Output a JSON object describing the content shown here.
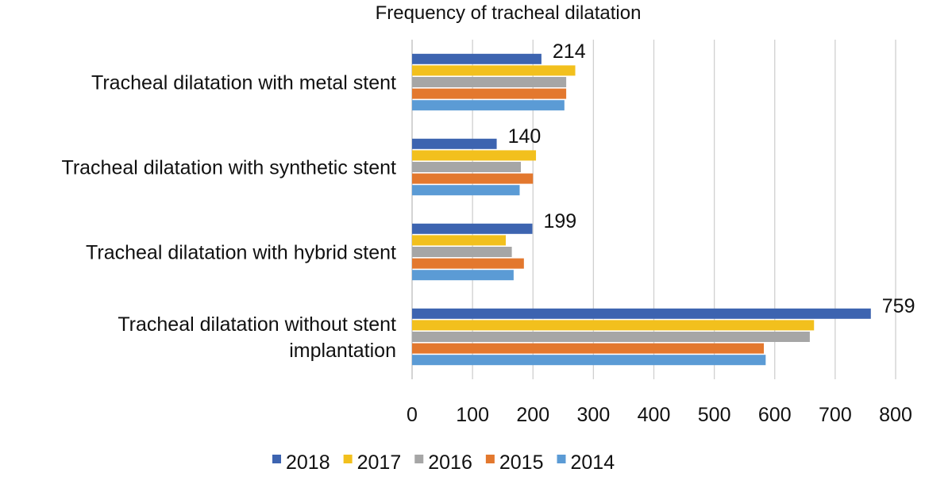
{
  "chart_data": {
    "type": "bar",
    "orientation": "horizontal",
    "title": "Frequency of tracheal dilatation",
    "xlabel": "",
    "ylabel": "",
    "xlim": [
      0,
      800
    ],
    "x_ticks": [
      0,
      100,
      200,
      300,
      400,
      500,
      600,
      700,
      800
    ],
    "grid": true,
    "legend_position": "bottom",
    "categories": [
      "Tracheal dilatation with metal stent",
      "Tracheal dilatation with synthetic stent",
      "Tracheal dilatation with hybrid stent",
      [
        "Tracheal dilatation without stent",
        "implantation"
      ]
    ],
    "series": [
      {
        "name": "2018",
        "color": "#3d64b0",
        "values": [
          214,
          140,
          199,
          759
        ]
      },
      {
        "name": "2017",
        "color": "#f2c01d",
        "values": [
          270,
          205,
          155,
          665
        ]
      },
      {
        "name": "2016",
        "color": "#a6a6a6",
        "values": [
          255,
          180,
          165,
          658
        ]
      },
      {
        "name": "2015",
        "color": "#e3782e",
        "values": [
          255,
          200,
          185,
          582
        ]
      },
      {
        "name": "2014",
        "color": "#5b9bd5",
        "values": [
          252,
          178,
          168,
          585
        ]
      }
    ],
    "data_labels": [
      {
        "series": "2018",
        "category_index": 0,
        "text": "214"
      },
      {
        "series": "2018",
        "category_index": 1,
        "text": "140"
      },
      {
        "series": "2018",
        "category_index": 2,
        "text": "199"
      },
      {
        "series": "2018",
        "category_index": 3,
        "text": "759"
      }
    ]
  }
}
